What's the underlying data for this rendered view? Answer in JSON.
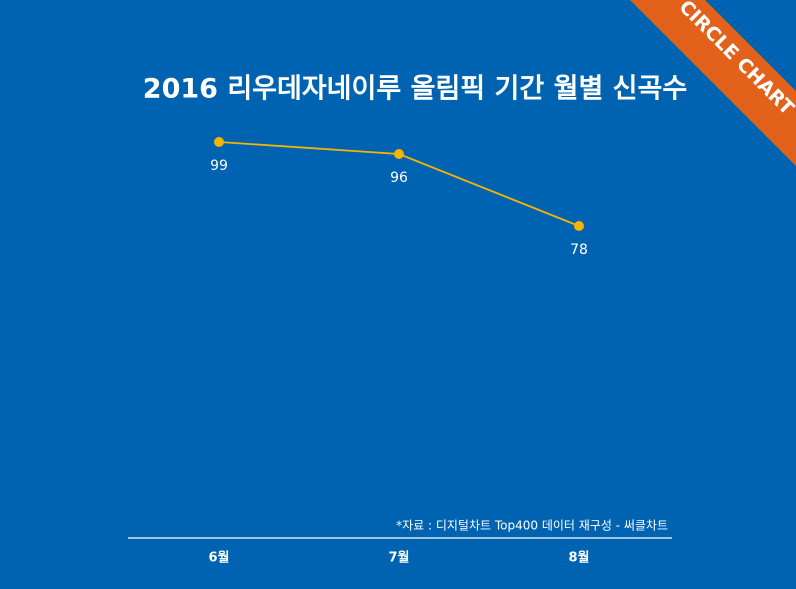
{
  "chart_data": {
    "type": "line",
    "title": "2016 리우데자네이루 올림픽 기간 월별 신곡수",
    "categories": [
      "6월",
      "7월",
      "8월"
    ],
    "values": [
      99,
      96,
      78
    ],
    "color": "#f5b400",
    "ylim": [
      0,
      100
    ],
    "source": "*자료 : 디지털차트 Top400 데이터 재구성 - 써클차트",
    "badge": "CIRCLE CHART"
  }
}
